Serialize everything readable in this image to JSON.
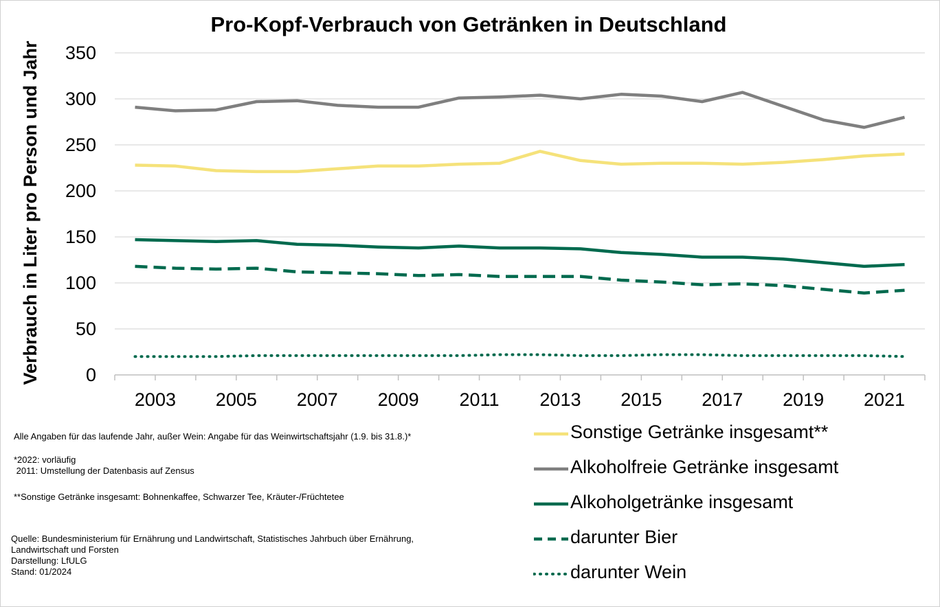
{
  "chart_data": {
    "type": "line",
    "title": "Pro-Kopf-Verbrauch von Getränken in Deutschland",
    "xlabel": "",
    "ylabel": "Verbrauch in Liter pro Person und Jahr",
    "x": [
      2003,
      2004,
      2005,
      2006,
      2007,
      2008,
      2009,
      2010,
      2011,
      2012,
      2013,
      2014,
      2015,
      2016,
      2017,
      2018,
      2019,
      2020,
      2021,
      2022
    ],
    "x_tick_labels": [
      "2003",
      "2005",
      "2007",
      "2009",
      "2011",
      "2013",
      "2015",
      "2017",
      "2019",
      "2021"
    ],
    "y_tick_labels": [
      "0",
      "50",
      "100",
      "150",
      "200",
      "250",
      "300",
      "350"
    ],
    "ylim": [
      0,
      350
    ],
    "grid": "horizontal",
    "legend_position": "bottom-right",
    "series": [
      {
        "name": "Sonstige Getränke insgesamt**",
        "color": "#f5e27a",
        "style": "solid",
        "values": [
          228,
          227,
          222,
          221,
          221,
          224,
          227,
          227,
          229,
          230,
          243,
          233,
          229,
          230,
          230,
          229,
          231,
          234,
          238,
          240
        ]
      },
      {
        "name": "Alkoholfreie Getränke insgesamt",
        "color": "#7f7f7f",
        "style": "solid",
        "values": [
          291,
          287,
          288,
          297,
          298,
          293,
          291,
          291,
          301,
          302,
          304,
          300,
          305,
          303,
          297,
          307,
          292,
          277,
          269,
          280
        ]
      },
      {
        "name": "Alkoholgetränke insgesamt",
        "color": "#006a4e",
        "style": "solid",
        "values": [
          147,
          146,
          145,
          146,
          142,
          141,
          139,
          138,
          140,
          138,
          138,
          137,
          133,
          131,
          128,
          128,
          126,
          122,
          118,
          120
        ]
      },
      {
        "name": "darunter Bier",
        "color": "#006a4e",
        "style": "dashed",
        "values": [
          118,
          116,
          115,
          116,
          112,
          111,
          110,
          108,
          109,
          107,
          107,
          107,
          103,
          101,
          98,
          99,
          97,
          93,
          89,
          92
        ]
      },
      {
        "name": "darunter Wein",
        "color": "#006a4e",
        "style": "dotted",
        "values": [
          20,
          20,
          20,
          21,
          21,
          21,
          21,
          21,
          21,
          22,
          22,
          21,
          21,
          22,
          22,
          21,
          21,
          21,
          21,
          20
        ]
      }
    ]
  },
  "notes": {
    "line1": "Alle Angaben für das laufende Jahr, außer Wein: Angabe für das Weinwirtschaftsjahr (1.9. bis 31.8.)*",
    "line2": "*2022: vorläufig",
    "line3": " 2011: Umstellung der Datenbasis auf Zensus",
    "line4": "**Sonstige Getränke insgesamt: Bohnenkaffee, Schwarzer Tee, Kräuter-/Früchtetee",
    "source1": "Quelle: Bundesministerium für Ernährung und Landwirtschaft, Statistisches Jahrbuch über Ernährung,",
    "source2": "Landwirtschaft und Forsten",
    "source3": "Darstellung: LfULG",
    "source4": "Stand: 01/2024"
  }
}
